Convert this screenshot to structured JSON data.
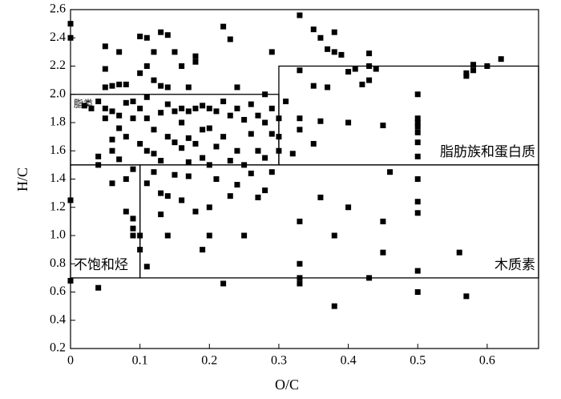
{
  "chart_data": {
    "type": "scatter",
    "x_label": "O/C",
    "y_label": "H/C",
    "xlim": [
      0,
      0.674
    ],
    "ylim": [
      0.2,
      2.6
    ],
    "xticks": [
      0,
      0.1,
      0.2,
      0.3,
      0.4,
      0.5,
      0.6
    ],
    "yticks": [
      0.2,
      0.4,
      0.6,
      0.8,
      {
        "value": 1,
        "label": "1.0"
      },
      1.2,
      1.4,
      1.6,
      1.8,
      {
        "value": 2,
        "label": "2.0"
      },
      2.2,
      2.4,
      2.6
    ],
    "color": "#000000",
    "regions": [
      {
        "label": "脂类",
        "xlim": [
          0,
          0.3
        ],
        "ylim": [
          1.5,
          2.0
        ],
        "label_corner": "top-left"
      },
      {
        "label": "脂肪族和蛋白质",
        "xlim": [
          0.3,
          0.674
        ],
        "ylim": [
          1.5,
          2.2
        ],
        "label_corner": "bottom-right"
      },
      {
        "label": "不饱和烃",
        "xlim": [
          0,
          0.1
        ],
        "ylim": [
          0.7,
          1.5
        ],
        "label_corner": "bottom-left"
      },
      {
        "label": "木质素",
        "xlim": [
          0.1,
          0.674
        ],
        "ylim": [
          0.7,
          1.5
        ],
        "label_corner": "bottom-right"
      }
    ],
    "x": [
      0,
      0,
      0,
      0,
      0.02,
      0.03,
      0.04,
      0.04,
      0.04,
      0.04,
      0.05,
      0.05,
      0.05,
      0.05,
      0.05,
      0.06,
      0.06,
      0.06,
      0.06,
      0.06,
      0.07,
      0.07,
      0.07,
      0.07,
      0.07,
      0.08,
      0.08,
      0.08,
      0.08,
      0.08,
      0.09,
      0.09,
      0.09,
      0.09,
      0.09,
      0.09,
      0.1,
      0.1,
      0.1,
      0.1,
      0.1,
      0.1,
      0.11,
      0.11,
      0.11,
      0.11,
      0.11,
      0.11,
      0.11,
      0.12,
      0.12,
      0.12,
      0.12,
      0.12,
      0.13,
      0.13,
      0.13,
      0.13,
      0.13,
      0.13,
      0.14,
      0.14,
      0.14,
      0.14,
      0.14,
      0.14,
      0.15,
      0.15,
      0.15,
      0.15,
      0.16,
      0.16,
      0.16,
      0.16,
      0.16,
      0.17,
      0.17,
      0.17,
      0.17,
      0.17,
      0.18,
      0.18,
      0.18,
      0.18,
      0.18,
      0.19,
      0.19,
      0.19,
      0.19,
      0.2,
      0.2,
      0.2,
      0.2,
      0.2,
      0.21,
      0.21,
      0.21,
      0.22,
      0.22,
      0.22,
      0.22,
      0.23,
      0.23,
      0.23,
      0.23,
      0.24,
      0.24,
      0.24,
      0.24,
      0.25,
      0.25,
      0.25,
      0.26,
      0.26,
      0.26,
      0.27,
      0.27,
      0.27,
      0.28,
      0.28,
      0.28,
      0.28,
      0.29,
      0.29,
      0.29,
      0.29,
      0.3,
      0.3,
      0.3,
      0.31,
      0.32,
      0.33,
      0.33,
      0.33,
      0.33,
      0.33,
      0.33,
      0.33,
      0.33,
      0.35,
      0.35,
      0.35,
      0.36,
      0.36,
      0.36,
      0.37,
      0.37,
      0.38,
      0.38,
      0.38,
      0.38,
      0.39,
      0.4,
      0.4,
      0.4,
      0.41,
      0.42,
      0.43,
      0.43,
      0.43,
      0.43,
      0.44,
      0.45,
      0.45,
      0.45,
      0.46,
      0.5,
      0.5,
      0.5,
      0.5,
      0.5,
      0.5,
      0.5,
      0.5,
      0.5,
      0.5,
      0.5,
      0.5,
      0.56,
      0.57,
      0.57,
      0.57,
      0.58,
      0.58,
      0.6,
      0.62
    ],
    "y": [
      2.5,
      2.4,
      1.25,
      0.68,
      1.92,
      1.9,
      1.95,
      1.56,
      1.5,
      0.63,
      2.34,
      2.18,
      2.05,
      1.9,
      1.83,
      1.88,
      2.06,
      1.68,
      1.37,
      1.6,
      2.07,
      2.3,
      1.85,
      1.76,
      1.54,
      2.07,
      1.94,
      1.7,
      1.17,
      1.4,
      1.83,
      1.95,
      1.05,
      1,
      1.12,
      1.47,
      2.15,
      2.41,
      1.9,
      1.65,
      0.9,
      1,
      2.4,
      2.2,
      1.98,
      1.83,
      1.6,
      1.37,
      0.78,
      2.3,
      2.1,
      1.75,
      1.58,
      1.45,
      2.44,
      2.06,
      1.87,
      1.53,
      1.3,
      1.15,
      2.42,
      2.05,
      1.93,
      1.7,
      1.28,
      1,
      2.3,
      1.88,
      1.66,
      1.43,
      2.2,
      1.9,
      1.8,
      1.62,
      1.25,
      2.05,
      1.88,
      1.69,
      1.52,
      1.42,
      2.23,
      2.27,
      1.9,
      1.65,
      1.17,
      1.92,
      1.75,
      1.55,
      0.9,
      1.9,
      1.76,
      1.5,
      1.2,
      1,
      1.88,
      1.63,
      1.4,
      2.48,
      1.95,
      1.7,
      0.66,
      2.39,
      1.85,
      1.53,
      1.28,
      2.05,
      1.9,
      1.6,
      1.36,
      1.82,
      1.5,
      1,
      1.93,
      1.72,
      1.44,
      1.85,
      1.6,
      1.27,
      2,
      1.8,
      1.55,
      1.32,
      1.72,
      1.9,
      2.3,
      1.45,
      1.83,
      1.6,
      1.7,
      1.95,
      1.58,
      2.56,
      2.17,
      1.83,
      1.75,
      1.1,
      0.8,
      0.7,
      0.66,
      2.46,
      2.06,
      1.65,
      2.4,
      1.81,
      1.27,
      2.32,
      2.05,
      2.44,
      2.3,
      1,
      0.5,
      2.28,
      2.16,
      1.8,
      1.2,
      2.18,
      2.07,
      2.29,
      2.2,
      2.1,
      0.7,
      2.18,
      1.78,
      1.1,
      0.88,
      1.45,
      2,
      1.83,
      1.8,
      1.77,
      1.73,
      1.66,
      1.56,
      1.4,
      1.24,
      1.16,
      0.75,
      0.6,
      0.88,
      2.13,
      2.15,
      0.57,
      2.17,
      2.21,
      2.2,
      2.25
    ]
  }
}
